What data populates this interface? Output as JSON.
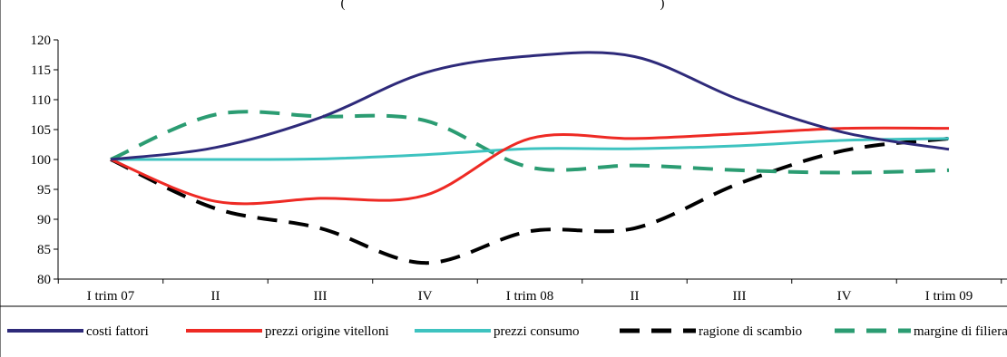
{
  "chart_data": {
    "type": "line",
    "title_fragment": "(",
    "title_fragment_end": ")",
    "categories": [
      "I trim 07",
      "II",
      "III",
      "IV",
      "I trim 08",
      "II",
      "III",
      "IV",
      "I trim 09"
    ],
    "ylim": [
      80,
      120
    ],
    "yticks": [
      80,
      85,
      90,
      95,
      100,
      105,
      110,
      115,
      120
    ],
    "grid": false,
    "legend_position": "bottom",
    "series": [
      {
        "name": "costi fattori",
        "color": "#2E2A7A",
        "dash": "solid",
        "values": [
          100,
          102,
          107,
          114.5,
          117.3,
          117.2,
          110,
          104.5,
          101.7
        ]
      },
      {
        "name": "prezzi origine vitelloni",
        "color": "#EE2A24",
        "dash": "solid",
        "values": [
          100,
          93,
          93.5,
          94,
          103.5,
          103.5,
          104.3,
          105.2,
          105.2
        ]
      },
      {
        "name": "prezzi consumo",
        "color": "#3EC3C0",
        "dash": "solid",
        "values": [
          100,
          100,
          100.1,
          100.8,
          101.8,
          101.8,
          102.3,
          103.2,
          103.5
        ]
      },
      {
        "name": "ragione di scambio",
        "color": "#000000",
        "dash": "dash",
        "values": [
          100,
          91.8,
          88.5,
          82.7,
          88,
          88.5,
          96,
          101.5,
          103.5
        ]
      },
      {
        "name": "margine di filiera",
        "color": "#2B9C72",
        "dash": "dash",
        "values": [
          100,
          107.5,
          107.2,
          106.5,
          98.7,
          99,
          98.2,
          97.8,
          98.2
        ]
      }
    ]
  }
}
